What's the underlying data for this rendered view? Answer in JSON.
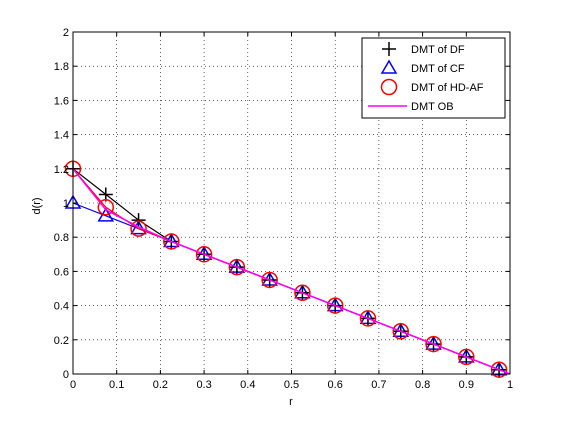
{
  "chart_data": {
    "type": "line",
    "title": "",
    "xlabel": "r",
    "ylabel": "d(r)",
    "xlim": [
      0,
      1
    ],
    "ylim": [
      0,
      2
    ],
    "grid": true,
    "legend_position": "top-right",
    "x_ticks": [
      "0",
      "0.1",
      "0.2",
      "0.3",
      "0.4",
      "0.5",
      "0.6",
      "0.7",
      "0.8",
      "0.9",
      "1"
    ],
    "y_ticks": [
      "0",
      "0.2",
      "0.4",
      "0.6",
      "0.8",
      "1",
      "1.2",
      "1.4",
      "1.6",
      "1.8",
      "2"
    ],
    "series": [
      {
        "name": "DMT of DF",
        "marker": "plus",
        "color": "#000000",
        "x": [
          0,
          0.075,
          0.15,
          0.225,
          0.3,
          0.375,
          0.45,
          0.525,
          0.6,
          0.675,
          0.75,
          0.825,
          0.9,
          0.975
        ],
        "y": [
          1.2,
          1.05,
          0.9,
          0.775,
          0.7,
          0.625,
          0.55,
          0.475,
          0.4,
          0.325,
          0.25,
          0.175,
          0.1,
          0.025
        ]
      },
      {
        "name": "DMT of CF",
        "marker": "triangle",
        "color": "#0000ff",
        "x": [
          0,
          0.075,
          0.15,
          0.225,
          0.3,
          0.375,
          0.45,
          0.525,
          0.6,
          0.675,
          0.75,
          0.825,
          0.9,
          0.975
        ],
        "y": [
          1.0,
          0.925,
          0.85,
          0.775,
          0.7,
          0.625,
          0.55,
          0.475,
          0.4,
          0.325,
          0.25,
          0.175,
          0.1,
          0.025
        ]
      },
      {
        "name": "DMT of HD-AF",
        "marker": "circle",
        "color": "#ff0000",
        "x": [
          0,
          0.075,
          0.15,
          0.225,
          0.3,
          0.375,
          0.45,
          0.525,
          0.6,
          0.675,
          0.75,
          0.825,
          0.9,
          0.975
        ],
        "y": [
          1.2,
          0.975,
          0.85,
          0.775,
          0.7,
          0.625,
          0.55,
          0.475,
          0.4,
          0.325,
          0.25,
          0.175,
          0.1,
          0.025
        ]
      },
      {
        "name": "DMT OB",
        "marker": "none",
        "color": "#ff00ff",
        "x": [
          0,
          0.075,
          0.15,
          0.225,
          0.3,
          0.375,
          0.45,
          0.525,
          0.6,
          0.675,
          0.75,
          0.825,
          0.9,
          0.975,
          1.0
        ],
        "y": [
          1.2,
          0.96,
          0.86,
          0.775,
          0.7,
          0.625,
          0.55,
          0.475,
          0.4,
          0.325,
          0.25,
          0.175,
          0.1,
          0.025,
          0.0
        ]
      }
    ]
  }
}
